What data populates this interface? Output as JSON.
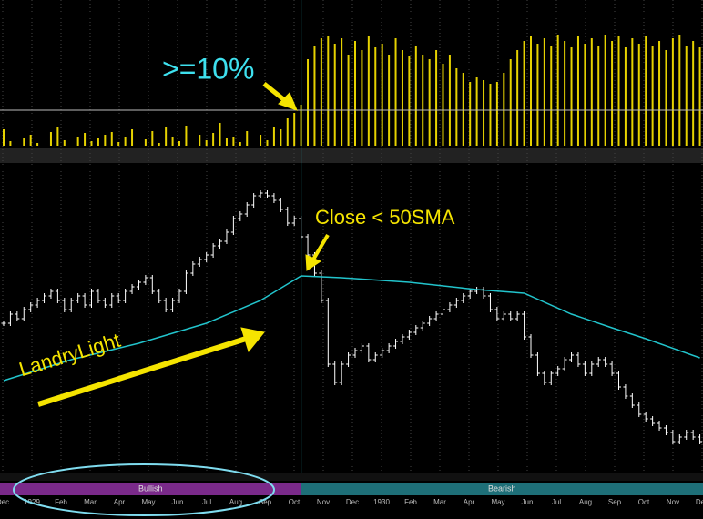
{
  "chart_data": [
    {
      "type": "bar",
      "color": "#e6d200",
      "ylim": [
        0,
        150
      ],
      "threshold": 39,
      "event_index": 44,
      "annotation": ">=10%",
      "values": [
        18,
        5,
        0,
        8,
        12,
        3,
        0,
        15,
        20,
        6,
        0,
        10,
        14,
        5,
        8,
        12,
        15,
        4,
        10,
        18,
        0,
        7,
        16,
        3,
        20,
        9,
        5,
        22,
        0,
        12,
        6,
        14,
        25,
        8,
        10,
        4,
        16,
        0,
        12,
        6,
        20,
        18,
        30,
        36,
        45,
        95,
        110,
        118,
        120,
        112,
        118,
        100,
        115,
        105,
        120,
        108,
        112,
        100,
        118,
        105,
        98,
        110,
        100,
        95,
        105,
        90,
        100,
        85,
        80,
        70,
        75,
        72,
        68,
        70,
        80,
        95,
        105,
        115,
        120,
        112,
        118,
        110,
        122,
        115,
        108,
        120,
        112,
        118,
        110,
        122,
        115,
        120,
        108,
        118,
        112,
        120,
        110,
        115,
        105,
        118,
        122,
        110,
        115,
        108
      ]
    },
    {
      "type": "price",
      "ylim": [
        0,
        330
      ],
      "annotation": "Close < 50SMA",
      "label": "LandryLight",
      "x_axis_labels": [
        "Dec",
        "1929",
        "Feb",
        "Mar",
        "Apr",
        "May",
        "Jun",
        "Jul",
        "Aug",
        "Sep",
        "Oct",
        "Nov",
        "Dec",
        "1930",
        "Feb",
        "Mar",
        "Apr",
        "May",
        "Jun",
        "Jul",
        "Aug",
        "Sep",
        "Oct",
        "Nov",
        "Dec"
      ],
      "bands": [
        {
          "label": "Bullish",
          "color": "#7a2a8a"
        },
        {
          "label": "Bearish",
          "color": "#1e6f78"
        }
      ],
      "series": [
        {
          "color": "#ffffff",
          "values": [
            160,
            170,
            165,
            175,
            180,
            185,
            190,
            195,
            185,
            175,
            185,
            190,
            180,
            195,
            185,
            180,
            190,
            185,
            195,
            200,
            205,
            210,
            195,
            185,
            175,
            185,
            195,
            215,
            225,
            230,
            235,
            245,
            250,
            260,
            275,
            280,
            290,
            300,
            303,
            300,
            295,
            285,
            270,
            275,
            255,
            235,
            215,
            185,
            115,
            95,
            115,
            125,
            130,
            135,
            120,
            125,
            130,
            135,
            140,
            145,
            150,
            155,
            160,
            165,
            170,
            175,
            180,
            185,
            190,
            195,
            197,
            190,
            175,
            165,
            170,
            165,
            170,
            145,
            125,
            105,
            95,
            105,
            110,
            120,
            125,
            115,
            105,
            115,
            120,
            115,
            105,
            90,
            80,
            70,
            60,
            55,
            50,
            45,
            40,
            30,
            35,
            40,
            35,
            30
          ]
        },
        {
          "color": "#22c4cc",
          "x": [
            0,
            10,
            20,
            30,
            38,
            44,
            50,
            60,
            70,
            77,
            84,
            90,
            95,
            103
          ],
          "values": [
            97,
            120,
            138,
            160,
            185,
            212,
            210,
            205,
            197,
            193,
            170,
            155,
            143,
            122
          ]
        }
      ]
    }
  ]
}
